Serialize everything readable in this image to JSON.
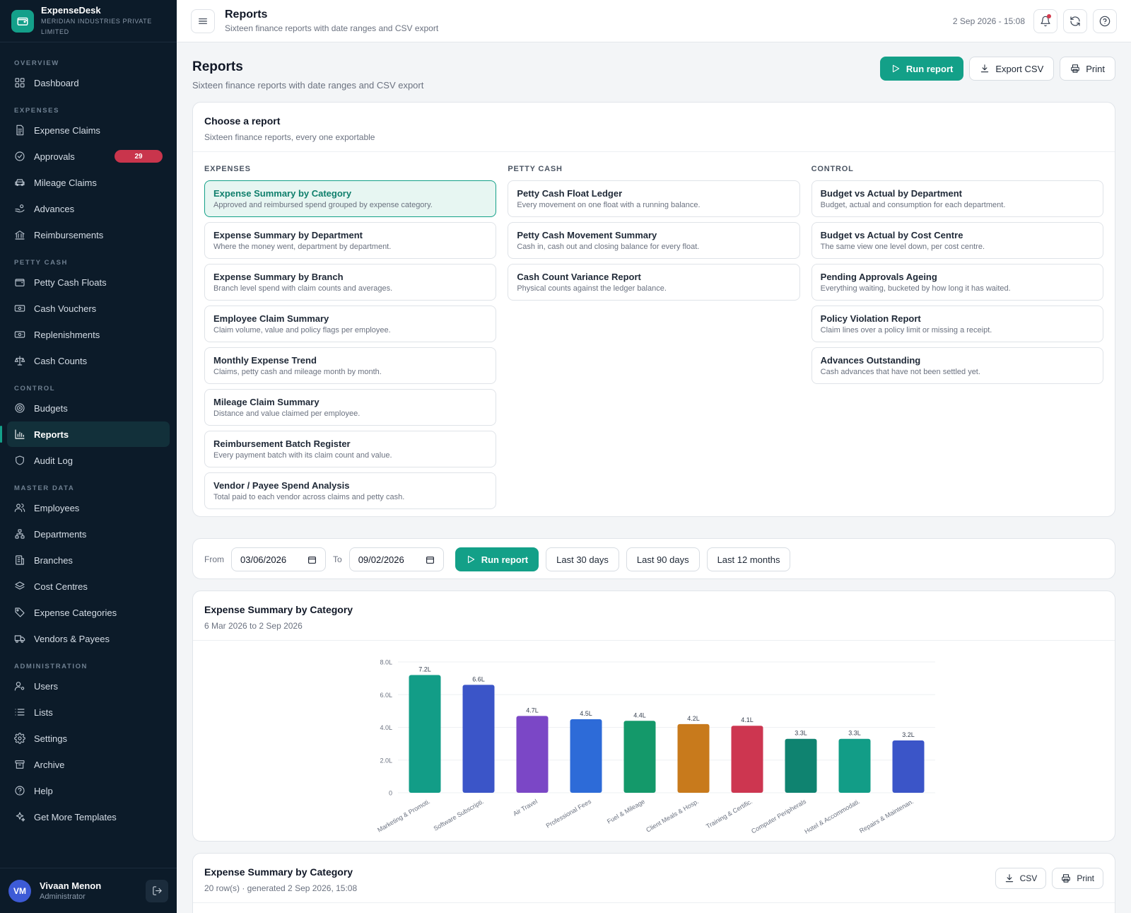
{
  "app": {
    "name": "ExpenseDesk",
    "org": "MERIDIAN INDUSTRIES PRIVATE LIMITED"
  },
  "sidebar": {
    "sections": [
      {
        "title": "OVERVIEW",
        "items": [
          {
            "label": "Dashboard",
            "icon": "dashboard-icon"
          }
        ]
      },
      {
        "title": "EXPENSES",
        "items": [
          {
            "label": "Expense Claims",
            "icon": "file-icon"
          },
          {
            "label": "Approvals",
            "icon": "check-circle-icon",
            "badge": "29"
          },
          {
            "label": "Mileage Claims",
            "icon": "car-icon"
          },
          {
            "label": "Advances",
            "icon": "hand-coins-icon"
          },
          {
            "label": "Reimbursements",
            "icon": "bank-icon"
          }
        ]
      },
      {
        "title": "PETTY CASH",
        "items": [
          {
            "label": "Petty Cash Floats",
            "icon": "wallet-icon"
          },
          {
            "label": "Cash Vouchers",
            "icon": "banknote-icon"
          },
          {
            "label": "Replenishments",
            "icon": "banknote-icon"
          },
          {
            "label": "Cash Counts",
            "icon": "scale-icon"
          }
        ]
      },
      {
        "title": "CONTROL",
        "items": [
          {
            "label": "Budgets",
            "icon": "target-icon"
          },
          {
            "label": "Reports",
            "icon": "bar-chart-icon",
            "active": true
          },
          {
            "label": "Audit Log",
            "icon": "shield-icon"
          }
        ]
      },
      {
        "title": "MASTER DATA",
        "items": [
          {
            "label": "Employees",
            "icon": "users-icon"
          },
          {
            "label": "Departments",
            "icon": "org-chart-icon"
          },
          {
            "label": "Branches",
            "icon": "building-icon"
          },
          {
            "label": "Cost Centres",
            "icon": "layers-icon"
          },
          {
            "label": "Expense Categories",
            "icon": "tag-icon"
          },
          {
            "label": "Vendors & Payees",
            "icon": "truck-icon"
          }
        ]
      },
      {
        "title": "ADMINISTRATION",
        "items": [
          {
            "label": "Users",
            "icon": "user-cog-icon"
          },
          {
            "label": "Lists",
            "icon": "list-icon"
          },
          {
            "label": "Settings",
            "icon": "gear-icon"
          },
          {
            "label": "Archive",
            "icon": "archive-icon"
          },
          {
            "label": "Help",
            "icon": "help-icon"
          },
          {
            "label": "Get More Templates",
            "icon": "sparkles-icon"
          }
        ]
      }
    ]
  },
  "user": {
    "initials": "VM",
    "name": "Vivaan Menon",
    "role": "Administrator"
  },
  "topbar": {
    "title": "Reports",
    "subtitle": "Sixteen finance reports with date ranges and CSV export",
    "datetime": "2 Sep 2026 - 15:08"
  },
  "page": {
    "title": "Reports",
    "subtitle": "Sixteen finance reports with date ranges and CSV export",
    "run_label": "Run report",
    "export_label": "Export CSV",
    "print_label": "Print"
  },
  "chooser": {
    "title": "Choose a report",
    "subtitle": "Sixteen finance reports, every one exportable",
    "columns": [
      {
        "heading": "EXPENSES",
        "reports": [
          {
            "title": "Expense Summary by Category",
            "desc": "Approved and reimbursed spend grouped by expense category.",
            "selected": true
          },
          {
            "title": "Expense Summary by Department",
            "desc": "Where the money went, department by department."
          },
          {
            "title": "Expense Summary by Branch",
            "desc": "Branch level spend with claim counts and averages."
          },
          {
            "title": "Employee Claim Summary",
            "desc": "Claim volume, value and policy flags per employee."
          },
          {
            "title": "Monthly Expense Trend",
            "desc": "Claims, petty cash and mileage month by month."
          },
          {
            "title": "Mileage Claim Summary",
            "desc": "Distance and value claimed per employee."
          },
          {
            "title": "Reimbursement Batch Register",
            "desc": "Every payment batch with its claim count and value."
          },
          {
            "title": "Vendor / Payee Spend Analysis",
            "desc": "Total paid to each vendor across claims and petty cash."
          }
        ]
      },
      {
        "heading": "PETTY CASH",
        "reports": [
          {
            "title": "Petty Cash Float Ledger",
            "desc": "Every movement on one float with a running balance."
          },
          {
            "title": "Petty Cash Movement Summary",
            "desc": "Cash in, cash out and closing balance for every float."
          },
          {
            "title": "Cash Count Variance Report",
            "desc": "Physical counts against the ledger balance."
          }
        ]
      },
      {
        "heading": "CONTROL",
        "reports": [
          {
            "title": "Budget vs Actual by Department",
            "desc": "Budget, actual and consumption for each department."
          },
          {
            "title": "Budget vs Actual by Cost Centre",
            "desc": "The same view one level down, per cost centre."
          },
          {
            "title": "Pending Approvals Ageing",
            "desc": "Everything waiting, bucketed by how long it has waited."
          },
          {
            "title": "Policy Violation Report",
            "desc": "Claim lines over a policy limit or missing a receipt."
          },
          {
            "title": "Advances Outstanding",
            "desc": "Cash advances that have not been settled yet."
          }
        ]
      }
    ]
  },
  "filters": {
    "from_label": "From",
    "from_value": "03/06/2026",
    "to_label": "To",
    "to_value": "09/02/2026",
    "run_label": "Run report",
    "presets": [
      "Last 30 days",
      "Last 90 days",
      "Last 12 months"
    ]
  },
  "chart_card": {
    "title": "Expense Summary by Category",
    "subtitle": "6 Mar 2026 to 2 Sep 2026"
  },
  "chart_data": {
    "type": "bar",
    "categories": [
      "Marketing & Promoti.",
      "Software Subscripti.",
      "Air Travel",
      "Professional Fees",
      "Fuel & Mileage",
      "Client Meals & Hosp.",
      "Training & Certific.",
      "Computer Peripherals",
      "Hotel & Accommodati.",
      "Repairs & Maintenan."
    ],
    "values": [
      7.2,
      6.6,
      4.7,
      4.5,
      4.4,
      4.2,
      4.1,
      3.3,
      3.3,
      3.2
    ],
    "data_labels": [
      "7.2L",
      "6.6L",
      "4.7L",
      "4.5L",
      "4.4L",
      "4.2L",
      "4.1L",
      "3.3L",
      "3.3L",
      "3.2L"
    ],
    "colors": [
      "#129d87",
      "#3b55c8",
      "#7b47c6",
      "#2d6bd8",
      "#14996a",
      "#c87a1c",
      "#cd3650",
      "#0f8370",
      "#129d87",
      "#3b55c8"
    ],
    "yticks": [
      "0",
      "2.0L",
      "4.0L",
      "6.0L",
      "8.0L"
    ],
    "ylim": [
      0,
      8
    ],
    "grid": true
  },
  "table_card": {
    "title": "Expense Summary by Category",
    "subtitle": "20 row(s) · generated 2 Sep 2026, 15:08",
    "csv_label": "CSV",
    "print_label": "Print"
  }
}
